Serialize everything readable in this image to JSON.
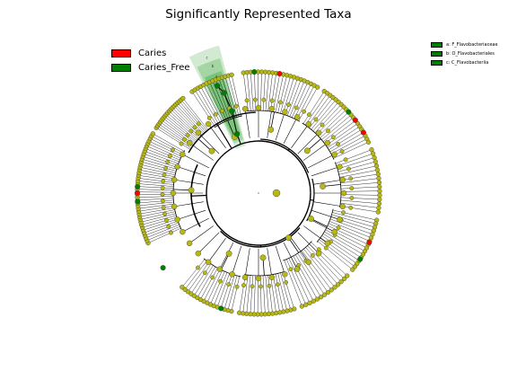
{
  "title": "Significantly Represented Taxa",
  "legend": [
    {
      "label": "Caries",
      "color": "#ff0000"
    },
    {
      "label": "Caries_Free",
      "color": "#008000"
    }
  ],
  "clade_legend": [
    {
      "label": "a: F_Flavobacteriaceae",
      "color": "#008000"
    },
    {
      "label": "b: O_Flavobacteriales",
      "color": "#008000"
    },
    {
      "label": "c: C_Flavobacteriia",
      "color": "#008000"
    }
  ],
  "highlight_labels": [
    "c",
    "b",
    "a"
  ],
  "colors": {
    "node": "#b8b814",
    "caries": "#ff0000",
    "caries_free": "#008000",
    "highlight": "#2ca02c",
    "edge": "#000000"
  }
}
